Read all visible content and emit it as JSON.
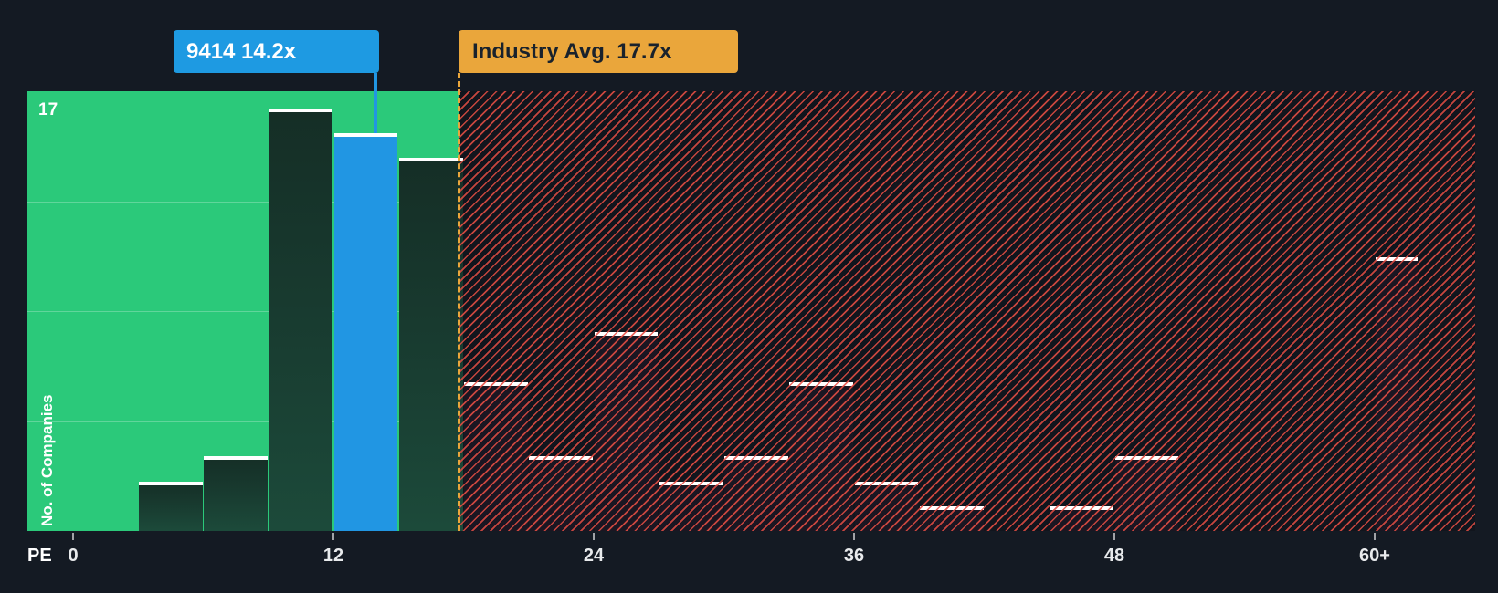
{
  "chart_data": {
    "type": "bar",
    "xlabel": "PE",
    "ylabel": "No. of Companies",
    "ymax_label": "17",
    "ylim": [
      0,
      17
    ],
    "grid": true,
    "legend_position": "none",
    "x_ticks": [
      {
        "label": "0",
        "pe": 0
      },
      {
        "label": "12",
        "pe": 12
      },
      {
        "label": "24",
        "pe": 24
      },
      {
        "label": "36",
        "pe": 36
      },
      {
        "label": "48",
        "pe": 48
      },
      {
        "label": "60+",
        "pe": 60
      }
    ],
    "bins": [
      {
        "pe_start": 3,
        "pe_end": 6,
        "count": 2,
        "zone": "below_avg"
      },
      {
        "pe_start": 6,
        "pe_end": 9,
        "count": 3,
        "zone": "below_avg"
      },
      {
        "pe_start": 9,
        "pe_end": 12,
        "count": 17,
        "zone": "below_avg"
      },
      {
        "pe_start": 12,
        "pe_end": 15,
        "count": 16,
        "zone": "below_avg",
        "highlight": true
      },
      {
        "pe_start": 15,
        "pe_end": 18,
        "count": 15,
        "zone": "below_avg"
      },
      {
        "pe_start": 18,
        "pe_end": 21,
        "count": 6,
        "zone": "above_avg"
      },
      {
        "pe_start": 21,
        "pe_end": 24,
        "count": 3,
        "zone": "above_avg"
      },
      {
        "pe_start": 24,
        "pe_end": 27,
        "count": 8,
        "zone": "above_avg"
      },
      {
        "pe_start": 27,
        "pe_end": 30,
        "count": 2,
        "zone": "above_avg"
      },
      {
        "pe_start": 30,
        "pe_end": 33,
        "count": 3,
        "zone": "above_avg"
      },
      {
        "pe_start": 33,
        "pe_end": 36,
        "count": 6,
        "zone": "above_avg"
      },
      {
        "pe_start": 36,
        "pe_end": 39,
        "count": 2,
        "zone": "above_avg"
      },
      {
        "pe_start": 39,
        "pe_end": 42,
        "count": 1,
        "zone": "above_avg"
      },
      {
        "pe_start": 45,
        "pe_end": 48,
        "count": 1,
        "zone": "above_avg"
      },
      {
        "pe_start": 48,
        "pe_end": 51,
        "count": 3,
        "zone": "above_avg"
      },
      {
        "pe_start": 60,
        "pe_end": 62,
        "count": 11,
        "zone": "above_avg",
        "open_ended": true
      }
    ],
    "highlight_tooltip": {
      "label": "9414 14.2x",
      "company": "9414",
      "pe_value": 14.2,
      "color": "#1e9ae2"
    },
    "industry_avg": {
      "label": "Industry Avg. 17.7x",
      "value": 17.7,
      "color": "#eaa63b"
    },
    "colors": {
      "background": "#141a23",
      "below_avg_zone": "#2bc97a",
      "above_avg_hatch": "#e74e44",
      "bar_below_avg": "#1c4a3a",
      "bar_highlight": "#2196e3",
      "bar_above_avg": "#1a1622",
      "bar_cap": "#ffffff"
    }
  }
}
